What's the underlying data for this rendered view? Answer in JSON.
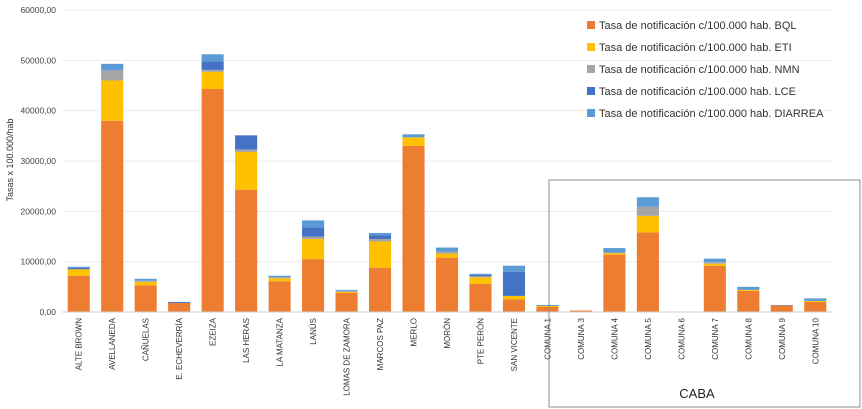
{
  "chart_data": {
    "type": "bar",
    "stacked": true,
    "title": "",
    "xlabel": "",
    "ylabel": "Tasas x 100.000/hab",
    "ylim": [
      0,
      60000
    ],
    "yticks": [
      "0,00",
      "10000,00",
      "20000,00",
      "30000,00",
      "40000,00",
      "50000,00",
      "60000,00"
    ],
    "legend_position": "top-right",
    "group_label": "CABA",
    "categories": [
      "ALTE BROWN",
      "AVELLANEDA",
      "CAÑUELAS",
      "E. ECHEVERRÍA",
      "EZEIZA",
      "LAS HERAS",
      "LA MATANZA",
      "LANÚS",
      "LOMAS DE ZAMORA",
      "MARCOS PAZ",
      "MERLO",
      "MORÓN",
      "PTE PERÓN",
      "SAN VICENTE",
      "COMUNA 1",
      "COMUNA 3",
      "COMUNA 4",
      "COMUNA 5",
      "COMUNA 6",
      "COMUNA 7",
      "COMUNA 8",
      "COMUNA 9",
      "COMUNA 10"
    ],
    "series": [
      {
        "name": "Tasa de notificación c/100.000 hab. BQL",
        "color": "#ED7D31",
        "values": [
          7200,
          38000,
          5300,
          1800,
          44300,
          24300,
          6100,
          10500,
          3800,
          8800,
          33000,
          10800,
          5600,
          2500,
          1000,
          300,
          11400,
          15800,
          0,
          9200,
          4200,
          1300,
          2000
        ]
      },
      {
        "name": "Tasa de notificación c/100.000 hab. ETI",
        "color": "#FFC000",
        "values": [
          1300,
          8000,
          700,
          0,
          3400,
          7500,
          600,
          4000,
          200,
          5200,
          1700,
          800,
          1300,
          700,
          200,
          0,
          300,
          3300,
          0,
          400,
          200,
          0,
          200
        ]
      },
      {
        "name": "Tasa de notificación c/100.000 hab. NMN",
        "color": "#A5A5A5",
        "values": [
          0,
          2000,
          200,
          0,
          400,
          500,
          200,
          500,
          200,
          500,
          0,
          400,
          200,
          0,
          0,
          0,
          100,
          1800,
          0,
          300,
          0,
          0,
          0
        ]
      },
      {
        "name": "Tasa de notificación c/100.000 hab. LCE",
        "color": "#4472C4",
        "values": [
          300,
          0,
          0,
          200,
          1700,
          2800,
          0,
          1800,
          0,
          700,
          0,
          0,
          300,
          4800,
          0,
          0,
          0,
          0,
          0,
          0,
          0,
          0,
          0
        ]
      },
      {
        "name": "Tasa de notificación c/100.000 hab. DIARREA",
        "color": "#5B9BD5",
        "values": [
          200,
          1300,
          400,
          0,
          1400,
          0,
          300,
          1400,
          200,
          500,
          600,
          800,
          200,
          1200,
          200,
          0,
          900,
          1900,
          0,
          700,
          600,
          100,
          500
        ]
      }
    ]
  }
}
